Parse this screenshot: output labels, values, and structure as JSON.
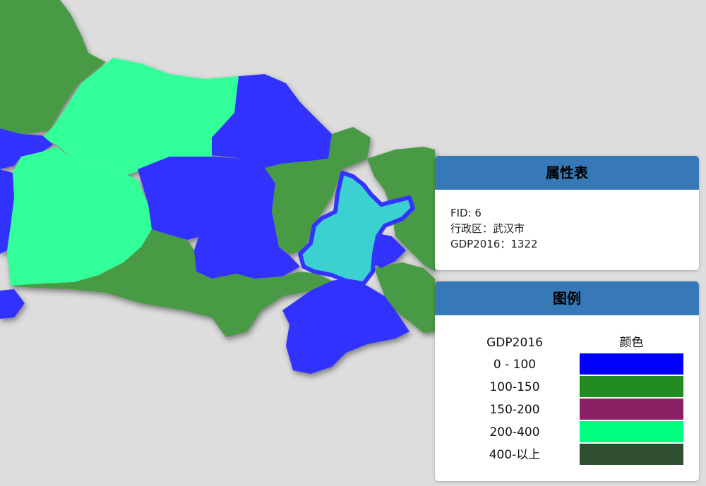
{
  "attribute_panel": {
    "title": "属性表",
    "fid": "FID: 6",
    "district": "行政区：武汉市",
    "gdp": "GDP2016：1322"
  },
  "legend_panel": {
    "title": "图例",
    "col_label": "GDP2016",
    "col_color": "颜色",
    "classes": [
      {
        "label": "0 - 100",
        "color": "#0000ff"
      },
      {
        "label": "100-150",
        "color": "#228b22"
      },
      {
        "label": "150-200",
        "color": "#8b2165"
      },
      {
        "label": "200-400",
        "color": "#00ff7f"
      },
      {
        "label": "400-以上",
        "color": "#2f4f2f"
      }
    ]
  },
  "map": {
    "selected_region": "武汉市",
    "selected_fill": "#3cd0d0",
    "selected_stroke": "#3333ff",
    "region_colors": {
      "low": "#3333ff",
      "mid": "#4a9a45",
      "high": "#33ff99"
    }
  }
}
